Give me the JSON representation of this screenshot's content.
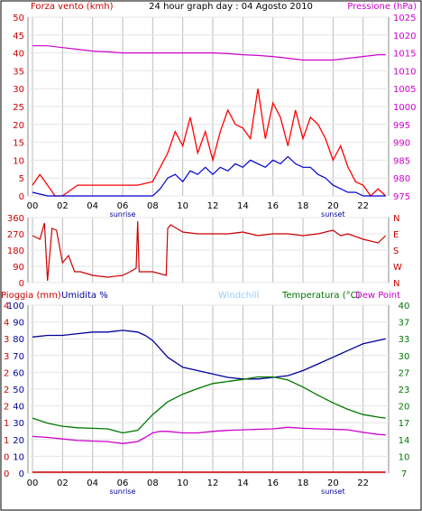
{
  "chart_data": [
    {
      "type": "line",
      "title": "24 hour graph day : 04 Agosto 2010",
      "left_axis_label": "Forza vento (kmh)",
      "right_axis_label": "Pressione (hPa)",
      "left_ticks": [
        "0",
        "5",
        "10",
        "15",
        "20",
        "25",
        "30",
        "35",
        "40",
        "45",
        "50"
      ],
      "right_ticks": [
        "975",
        "980",
        "985",
        "990",
        "995",
        "1000",
        "1005",
        "1010",
        "1015",
        "1020",
        "1025"
      ],
      "left_ylim": [
        0,
        50
      ],
      "right_ylim": [
        975,
        1025
      ],
      "x_ticks": [
        "00",
        "02",
        "04",
        "06",
        "08",
        "10",
        "12",
        "14",
        "16",
        "18",
        "20",
        "22"
      ],
      "x_markers": [
        {
          "hour": 6.0,
          "label": "sunrise"
        },
        {
          "hour": 20.0,
          "label": "sunset"
        }
      ],
      "grid": true,
      "colors": {
        "gust": "#ff0000",
        "wind": "#0000cc",
        "pressure": "#cc00cc",
        "axis": "#cc0000"
      },
      "series": [
        {
          "name": "Forza vento",
          "key": "gust",
          "x_hours": [
            0,
            0.5,
            1,
            1.5,
            2,
            3,
            4,
            5,
            6,
            7,
            8,
            8.5,
            9,
            9.5,
            10,
            10.5,
            11,
            11.5,
            12,
            12.5,
            13,
            13.5,
            14,
            14.5,
            15,
            15.5,
            16,
            16.5,
            17,
            17.5,
            18,
            18.5,
            19,
            19.5,
            20,
            20.5,
            21,
            21.5,
            22,
            22.5,
            23,
            23.5
          ],
          "values": [
            3,
            6,
            3,
            0,
            0,
            3,
            3,
            3,
            3,
            3,
            4,
            8,
            12,
            18,
            14,
            22,
            12,
            18,
            10,
            18,
            24,
            20,
            19,
            16,
            30,
            16,
            26,
            22,
            14,
            24,
            16,
            22,
            20,
            16,
            10,
            14,
            8,
            4,
            3,
            0,
            2,
            0
          ]
        },
        {
          "name": "",
          "key": "wind",
          "x_hours": [
            0,
            1,
            2,
            3,
            4,
            5,
            6,
            7,
            8,
            8.5,
            9,
            9.5,
            10,
            10.5,
            11,
            11.5,
            12,
            12.5,
            13,
            13.5,
            14,
            14.5,
            15,
            15.5,
            16,
            16.5,
            17,
            17.5,
            18,
            18.5,
            19,
            19.5,
            20,
            20.5,
            21,
            21.5,
            22,
            22.5,
            23,
            23.5
          ],
          "values": [
            1,
            0,
            0,
            0,
            0,
            0,
            0,
            0,
            0,
            2,
            5,
            6,
            4,
            7,
            6,
            8,
            6,
            8,
            7,
            9,
            8,
            10,
            9,
            8,
            10,
            9,
            11,
            9,
            8,
            8,
            6,
            5,
            3,
            2,
            1,
            1,
            0,
            0,
            0,
            0
          ]
        },
        {
          "name": "",
          "key": "pressure",
          "x_hours": [
            0,
            1,
            2,
            3,
            4,
            5,
            6,
            7,
            8,
            9,
            10,
            11,
            12,
            13,
            14,
            15,
            16,
            17,
            18,
            19,
            20,
            21,
            22,
            23,
            23.5
          ],
          "values": [
            1017,
            1017,
            1016.5,
            1016,
            1015.5,
            1015.3,
            1015,
            1015,
            1015,
            1015,
            1015,
            1015,
            1015,
            1014.8,
            1014.5,
            1014.3,
            1014,
            1013.5,
            1013,
            1013,
            1013,
            1013.5,
            1014,
            1014.5,
            1014.5
          ]
        }
      ]
    },
    {
      "type": "line",
      "title": "",
      "left_ticks": [
        "0",
        "90",
        "180",
        "270",
        "360"
      ],
      "right_ticks": [
        "N",
        "W",
        "S",
        "E",
        "N"
      ],
      "ylim": [
        0,
        360
      ],
      "x_ticks": [],
      "grid": true,
      "colors": {
        "direction": "#cc0000"
      },
      "series": [
        {
          "name": "",
          "key": "direction",
          "x_hours": [
            0,
            0.5,
            0.8,
            1,
            1.3,
            1.6,
            2,
            2.4,
            2.8,
            3.2,
            4,
            5,
            6,
            6.5,
            6.9,
            7.0,
            7.1,
            8,
            8.9,
            9.0,
            9.2,
            10,
            11,
            12,
            13,
            14,
            15,
            16,
            17,
            18,
            19,
            20,
            20.5,
            21,
            22,
            23,
            23.5
          ],
          "values": [
            260,
            240,
            330,
            10,
            300,
            290,
            110,
            150,
            60,
            60,
            40,
            30,
            40,
            60,
            80,
            340,
            60,
            60,
            40,
            300,
            320,
            280,
            270,
            270,
            270,
            280,
            260,
            270,
            270,
            260,
            270,
            290,
            260,
            270,
            240,
            220,
            260
          ]
        }
      ]
    },
    {
      "type": "line",
      "labels": {
        "rain": "Pioggia (mm)",
        "humidity": "Umidita %",
        "windchill": "Windchill",
        "temperature": "Temperatura (°C)",
        "dewpoint": "Dew Point"
      },
      "rain_ticks": [
        "0",
        "0",
        "1",
        "1",
        "2",
        "2",
        "2",
        "3",
        "3",
        "4",
        "4"
      ],
      "humidity_ticks": [
        "0",
        "10",
        "20",
        "30",
        "40",
        "50",
        "60",
        "70",
        "80",
        "90",
        "100"
      ],
      "temp_ticks": [
        "7",
        "10",
        "14",
        "17",
        "20",
        "23",
        "27",
        "30",
        "33",
        "37",
        "40"
      ],
      "humidity_ylim": [
        0,
        100
      ],
      "temp_ylim": [
        7,
        40
      ],
      "x_ticks": [
        "00",
        "02",
        "04",
        "06",
        "08",
        "10",
        "12",
        "14",
        "16",
        "18",
        "20",
        "22"
      ],
      "x_markers": [
        {
          "hour": 6.0,
          "label": "sunrise"
        },
        {
          "hour": 20.0,
          "label": "sunset"
        }
      ],
      "grid": true,
      "colors": {
        "humidity": "#000099",
        "temperature": "#007700",
        "dewpoint": "#cc00cc",
        "rain": "#cc0000",
        "windchill": "#99ccff"
      },
      "series": [
        {
          "name": "Umidita %",
          "key": "humidity",
          "x_hours": [
            0,
            1,
            2,
            3,
            4,
            5,
            6,
            7,
            7.5,
            8,
            8.5,
            9,
            9.5,
            10,
            11,
            12,
            13,
            14,
            15,
            16,
            17,
            18,
            19,
            20,
            21,
            22,
            23,
            23.5
          ],
          "values": [
            81,
            82,
            82,
            83,
            84,
            84,
            85,
            84,
            82,
            79,
            74,
            69,
            66,
            63,
            61,
            59,
            57,
            56,
            56,
            57,
            58,
            61,
            65,
            69,
            73,
            77,
            79,
            80
          ]
        },
        {
          "name": "Temperatura (°C)",
          "key": "temperature",
          "x_hours": [
            0,
            1,
            2,
            3,
            4,
            5,
            6,
            7,
            8,
            9,
            10,
            11,
            12,
            13,
            14,
            15,
            16,
            17,
            18,
            19,
            20,
            21,
            22,
            23,
            23.5
          ],
          "values": [
            17.8,
            16.8,
            16.2,
            15.9,
            15.8,
            15.7,
            14.9,
            15.4,
            18.5,
            21.0,
            22.5,
            23.6,
            24.6,
            25.0,
            25.4,
            25.9,
            25.9,
            25.3,
            23.9,
            22.3,
            20.8,
            19.5,
            18.5,
            18.0,
            17.8
          ]
        },
        {
          "name": "Dew Point",
          "key": "dewpoint",
          "x_hours": [
            0,
            1,
            2,
            3,
            4,
            5,
            6,
            6.5,
            7,
            7.5,
            8,
            8.5,
            9,
            10,
            11,
            12,
            13,
            14,
            15,
            16,
            17,
            18,
            19,
            20,
            21,
            22,
            23,
            23.5
          ],
          "values": [
            14.2,
            14.0,
            13.7,
            13.4,
            13.3,
            13.2,
            12.8,
            13.0,
            13.2,
            14.0,
            14.9,
            15.2,
            15.2,
            14.9,
            14.9,
            15.2,
            15.4,
            15.5,
            15.6,
            15.7,
            16.0,
            15.8,
            15.7,
            15.6,
            15.5,
            15.0,
            14.6,
            14.5
          ]
        },
        {
          "name": "Pioggia (mm)",
          "key": "rain",
          "x_hours": [
            0,
            23.5
          ],
          "values": [
            0,
            0
          ]
        }
      ]
    }
  ]
}
